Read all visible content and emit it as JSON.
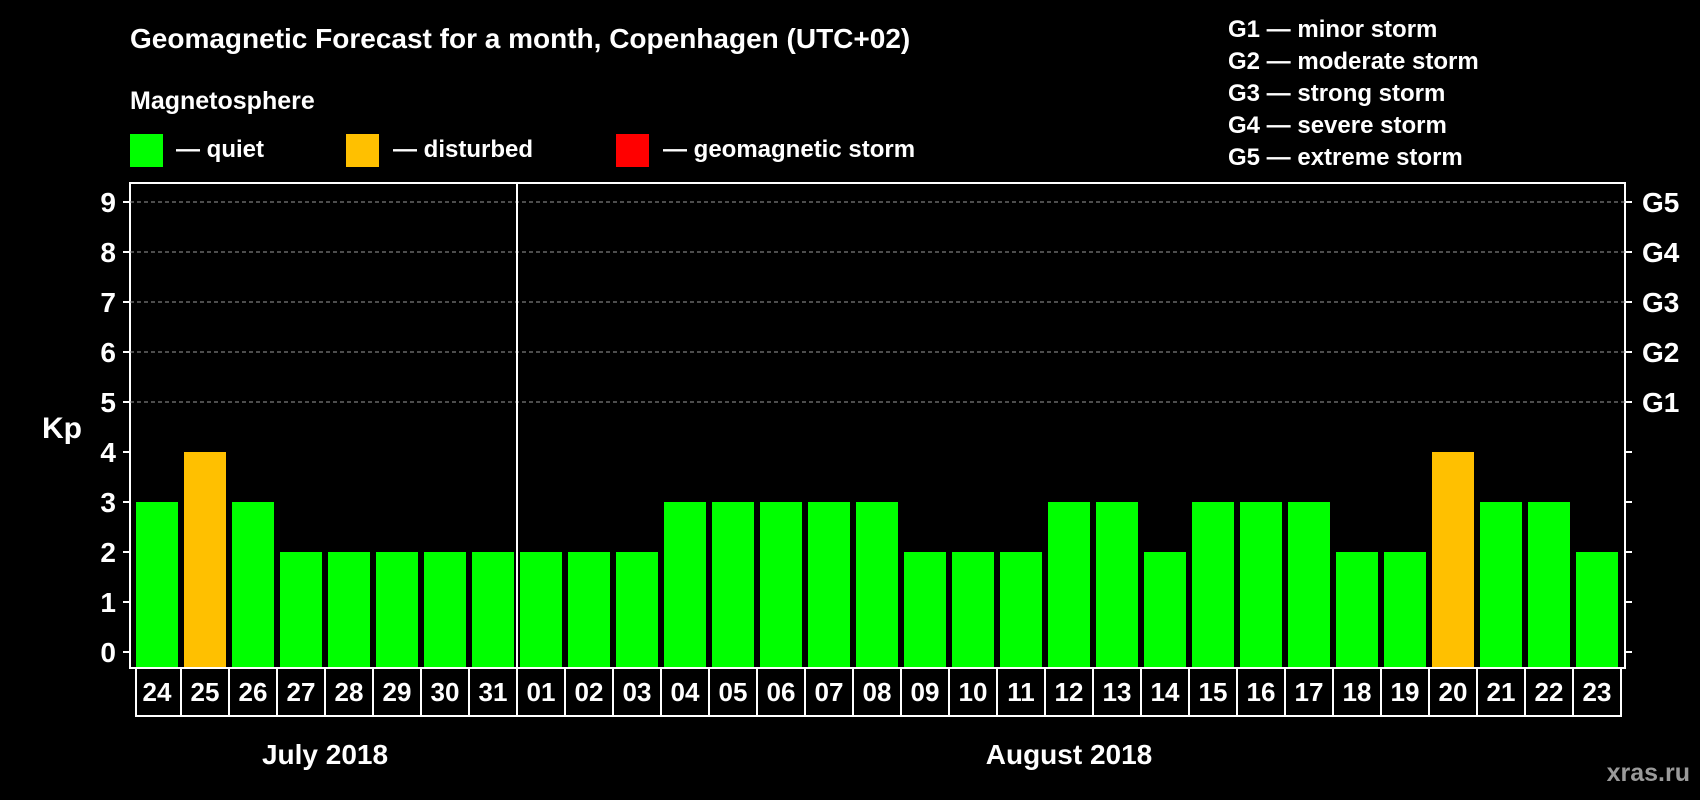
{
  "title": "Geomagnetic Forecast for a month, Copenhagen (UTC+02)",
  "watermark": "xras.ru",
  "legend": {
    "heading": "Magnetosphere",
    "items": [
      {
        "label": "— quiet",
        "color": "#00ff00"
      },
      {
        "label": "— disturbed",
        "color": "#ffc000"
      },
      {
        "label": "— geomagnetic storm",
        "color": "#ff0000"
      }
    ]
  },
  "storm_scale": [
    "G1 — minor storm",
    "G2 — moderate storm",
    "G3 — strong storm",
    "G4 — severe storm",
    "G5 — extreme storm"
  ],
  "chart_data": {
    "type": "bar",
    "title": "Geomagnetic Forecast for a month, Copenhagen (UTC+02)",
    "ylabel": "Kp",
    "xlabel": "",
    "ylim": [
      0,
      9
    ],
    "yticks": [
      0,
      1,
      2,
      3,
      4,
      5,
      6,
      7,
      8,
      9
    ],
    "right_ticks": [
      {
        "kp": 5,
        "label": "G1"
      },
      {
        "kp": 6,
        "label": "G2"
      },
      {
        "kp": 7,
        "label": "G3"
      },
      {
        "kp": 8,
        "label": "G4"
      },
      {
        "kp": 9,
        "label": "G5"
      }
    ],
    "grid_lines_kp": [
      5,
      6,
      7,
      8,
      9
    ],
    "categories": [
      "24",
      "25",
      "26",
      "27",
      "28",
      "29",
      "30",
      "31",
      "01",
      "02",
      "03",
      "04",
      "05",
      "06",
      "07",
      "08",
      "09",
      "10",
      "11",
      "12",
      "13",
      "14",
      "15",
      "16",
      "17",
      "18",
      "19",
      "20",
      "21",
      "22",
      "23"
    ],
    "values": [
      3,
      4,
      3,
      2,
      2,
      2,
      2,
      2,
      2,
      2,
      2,
      3,
      3,
      3,
      3,
      3,
      2,
      2,
      2,
      3,
      3,
      2,
      3,
      3,
      3,
      2,
      2,
      4,
      3,
      3,
      2
    ],
    "status": [
      "quiet",
      "disturbed",
      "quiet",
      "quiet",
      "quiet",
      "quiet",
      "quiet",
      "quiet",
      "quiet",
      "quiet",
      "quiet",
      "quiet",
      "quiet",
      "quiet",
      "quiet",
      "quiet",
      "quiet",
      "quiet",
      "quiet",
      "quiet",
      "quiet",
      "quiet",
      "quiet",
      "quiet",
      "quiet",
      "quiet",
      "quiet",
      "disturbed",
      "quiet",
      "quiet",
      "quiet"
    ],
    "month_labels": [
      {
        "label": "July 2018",
        "start": 0,
        "end": 7
      },
      {
        "label": "August 2018",
        "start": 8,
        "end": 30
      }
    ],
    "month_divider_after_index": 7
  }
}
